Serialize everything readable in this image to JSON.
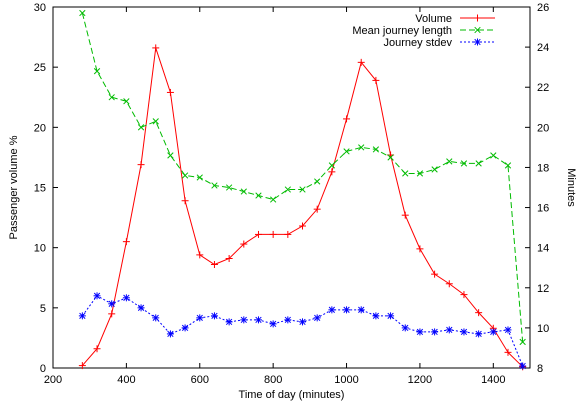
{
  "chart_data": {
    "type": "line",
    "xlabel": "Time of day (minutes)",
    "ylabel_left": "Passenger volume %",
    "ylabel_right": "Minutes",
    "xlim": [
      200,
      1500
    ],
    "ylim_left": [
      0,
      30
    ],
    "ylim_right": [
      8,
      26
    ],
    "x_ticks": [
      200,
      400,
      600,
      800,
      1000,
      1200,
      1400
    ],
    "y_left_ticks": [
      0,
      5,
      10,
      15,
      20,
      25,
      30
    ],
    "y_right_ticks": [
      8,
      10,
      12,
      14,
      16,
      18,
      20,
      22,
      24,
      26
    ],
    "legend_position": "top-right",
    "grid": false,
    "series": [
      {
        "name": "Volume",
        "axis": "left",
        "color": "#ff0000",
        "marker": "plus",
        "dash": "solid",
        "x": [
          280,
          320,
          360,
          400,
          440,
          480,
          520,
          560,
          600,
          640,
          680,
          720,
          760,
          800,
          840,
          880,
          920,
          960,
          1000,
          1040,
          1080,
          1120,
          1160,
          1200,
          1240,
          1280,
          1320,
          1360,
          1400,
          1440,
          1480
        ],
        "y": [
          0.2,
          1.6,
          4.5,
          10.5,
          16.9,
          26.6,
          22.9,
          13.9,
          9.4,
          8.6,
          9.1,
          10.3,
          11.1,
          11.1,
          11.1,
          11.8,
          13.2,
          16.3,
          20.7,
          25.4,
          23.9,
          17.7,
          12.7,
          9.9,
          7.8,
          7.0,
          6.1,
          4.6,
          3.3,
          1.3,
          0.1
        ]
      },
      {
        "name": "Mean journey length",
        "axis": "right",
        "color": "#00bb00",
        "marker": "cross",
        "dash": "6,3",
        "x": [
          280,
          320,
          360,
          400,
          440,
          480,
          520,
          560,
          600,
          640,
          680,
          720,
          760,
          800,
          840,
          880,
          920,
          960,
          1000,
          1040,
          1080,
          1120,
          1160,
          1200,
          1240,
          1280,
          1320,
          1360,
          1400,
          1440,
          1480
        ],
        "y": [
          25.7,
          22.8,
          21.5,
          21.3,
          20.0,
          20.3,
          18.6,
          17.6,
          17.5,
          17.1,
          17.0,
          16.8,
          16.6,
          16.4,
          16.9,
          16.9,
          17.3,
          18.1,
          18.8,
          19.0,
          18.9,
          18.5,
          17.7,
          17.7,
          17.9,
          18.3,
          18.2,
          18.2,
          18.6,
          18.1,
          9.3
        ]
      },
      {
        "name": "Journey stdev",
        "axis": "right",
        "color": "#0000ff",
        "marker": "star",
        "dash": "2,2",
        "x": [
          280,
          320,
          360,
          400,
          440,
          480,
          520,
          560,
          600,
          640,
          680,
          720,
          760,
          800,
          840,
          880,
          920,
          960,
          1000,
          1040,
          1080,
          1120,
          1160,
          1200,
          1240,
          1280,
          1320,
          1360,
          1400,
          1440,
          1480
        ],
        "y": [
          10.6,
          11.6,
          11.2,
          11.5,
          11.0,
          10.5,
          9.7,
          10.0,
          10.5,
          10.6,
          10.3,
          10.4,
          10.4,
          10.2,
          10.4,
          10.3,
          10.5,
          10.9,
          10.9,
          10.9,
          10.6,
          10.6,
          10.0,
          9.8,
          9.8,
          9.9,
          9.8,
          9.7,
          9.8,
          9.9,
          8.1
        ]
      }
    ]
  }
}
